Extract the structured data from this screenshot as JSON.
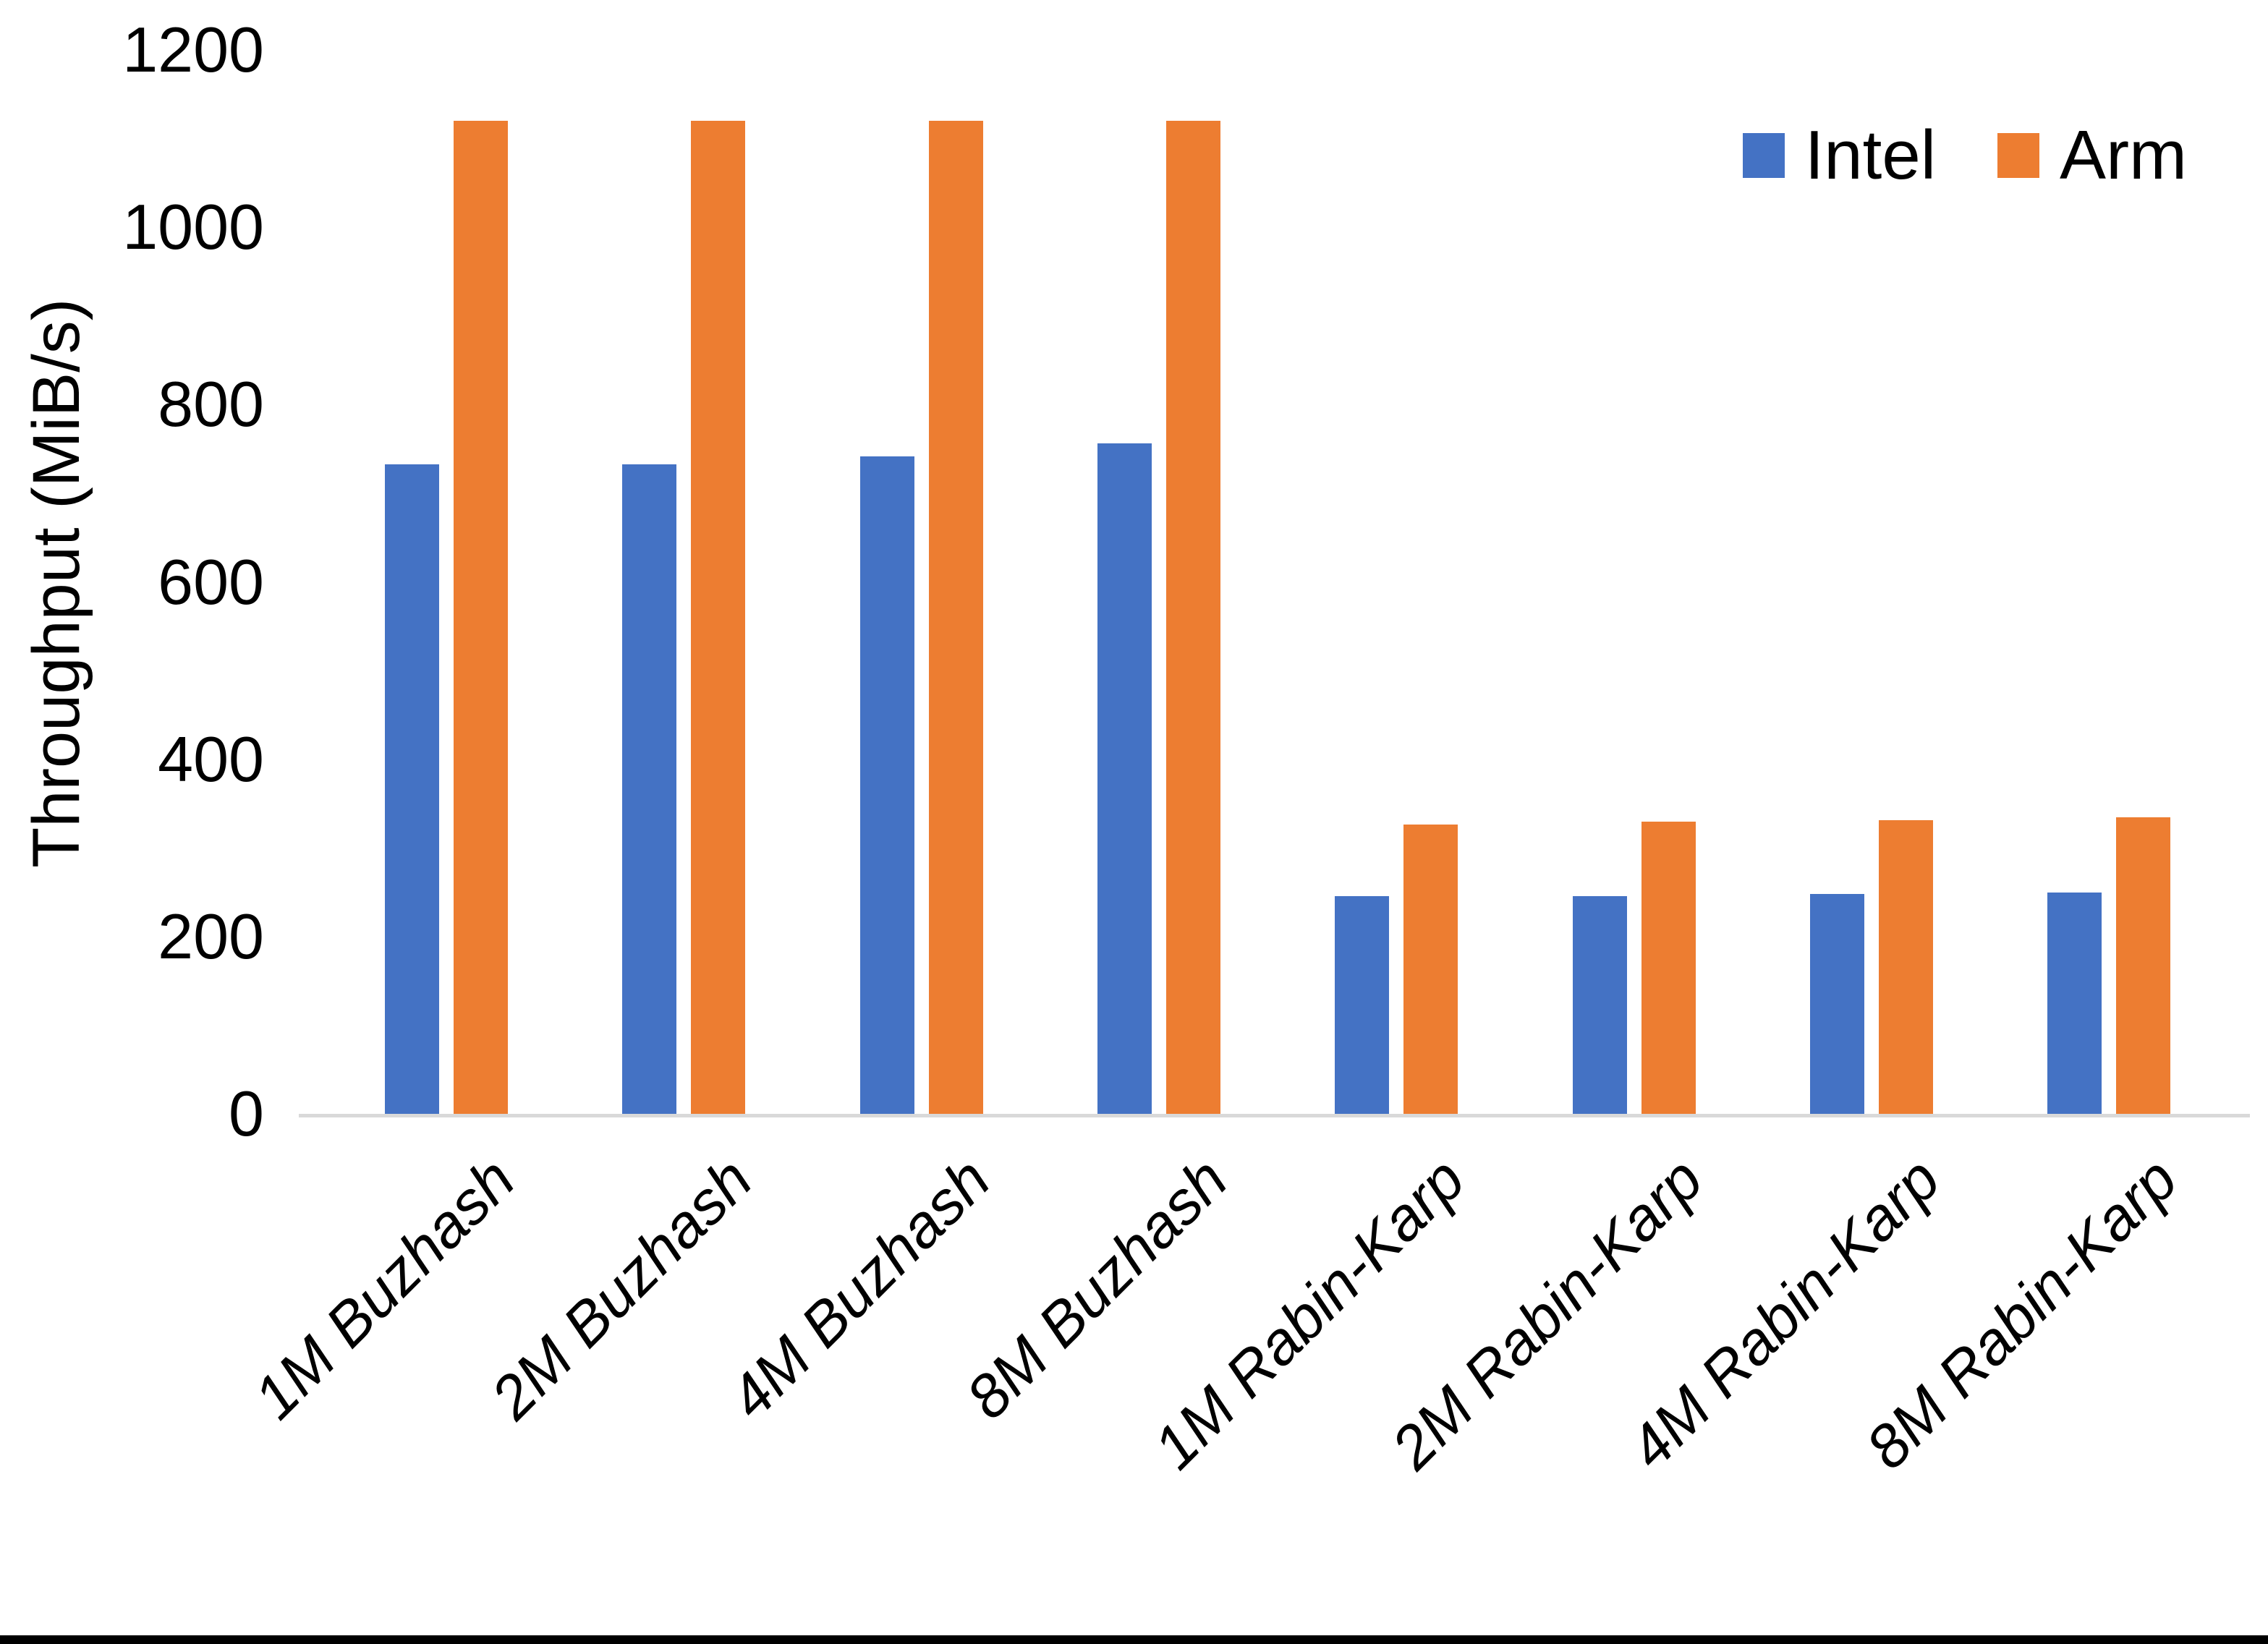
{
  "chart_data": {
    "type": "bar",
    "title": "",
    "xlabel": "",
    "ylabel": "Throughput (MiB/s)",
    "ylim": [
      0,
      1200
    ],
    "yticks": [
      0,
      200,
      400,
      600,
      800,
      1000,
      1200
    ],
    "grid": false,
    "legend_position": "top-right",
    "categories": [
      "1M Buzhash",
      "2M Buzhash",
      "4M Buzhash",
      "8M Buzhash",
      "1M Rabin-Karp",
      "2M Rabin-Karp",
      "4M Rabin-Karp",
      "8M Rabin-Karp"
    ],
    "series": [
      {
        "name": "Intel",
        "color": "#4472C4",
        "values": [
          734,
          734,
          743,
          758,
          247,
          247,
          250,
          251
        ]
      },
      {
        "name": "Arm",
        "color": "#ED7D31",
        "values": [
          1122,
          1122,
          1122,
          1122,
          328,
          331,
          333,
          336
        ]
      }
    ]
  },
  "colors": {
    "axis_line": "#D9D9D9",
    "text": "#000000",
    "background": "#FFFFFF",
    "bottom_border": "#000000"
  }
}
